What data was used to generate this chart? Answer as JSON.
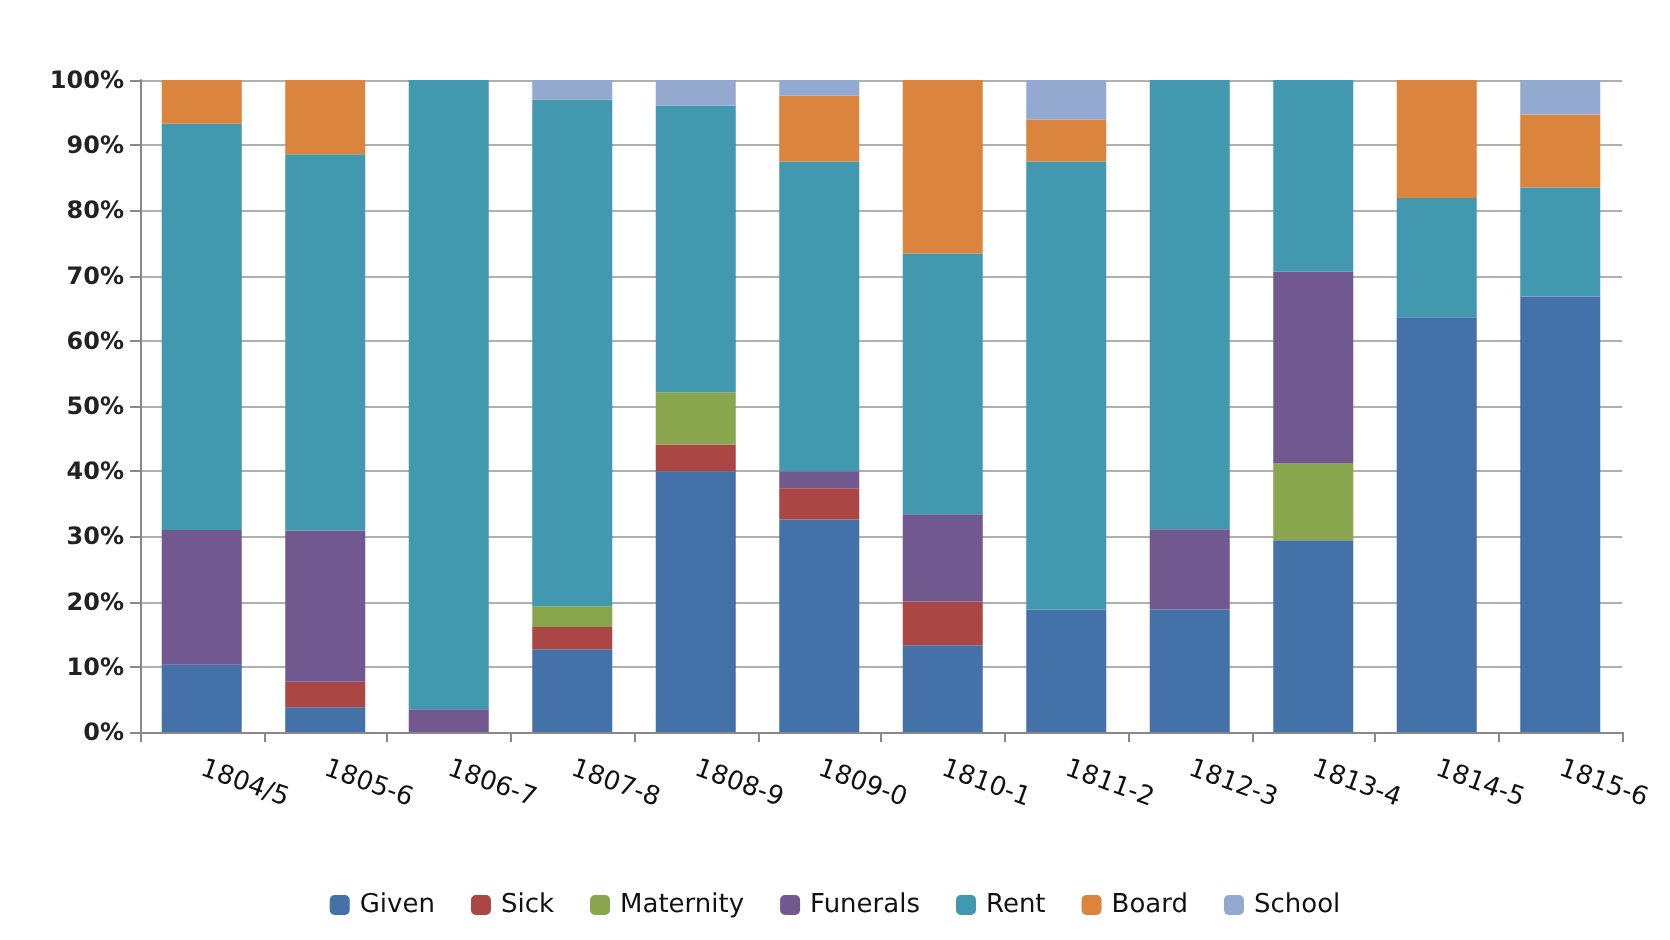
{
  "chart_data": {
    "type": "bar",
    "stacked": true,
    "categories": [
      "1804/5",
      "1805-6",
      "1806-7",
      "1807-8",
      "1808-9",
      "1809-0",
      "1810-1",
      "1811-2",
      "1812-3",
      "1813-4",
      "1814-5",
      "1815-6"
    ],
    "series": [
      {
        "name": "Given",
        "color": "#4472a8",
        "values": [
          10.3,
          3.8,
          0,
          12.7,
          40,
          32.6,
          13.3,
          18.8,
          18.8,
          29.4,
          63.6,
          66.8
        ]
      },
      {
        "name": "Sick",
        "color": "#aa4643",
        "values": [
          0,
          3.9,
          0,
          3.4,
          4.1,
          4.8,
          6.7,
          0,
          0,
          0,
          0,
          0
        ]
      },
      {
        "name": "Maternity",
        "color": "#89a54e",
        "values": [
          0,
          0,
          0,
          3.2,
          8,
          0,
          0,
          0,
          0,
          11.8,
          0,
          0
        ]
      },
      {
        "name": "Funerals",
        "color": "#71588f",
        "values": [
          20.7,
          23.2,
          3.5,
          0,
          0,
          2.6,
          13.4,
          0,
          12.3,
          29.4,
          0,
          0
        ]
      },
      {
        "name": "Rent",
        "color": "#4198af",
        "values": [
          62.3,
          57.7,
          96.5,
          77.7,
          44,
          47.5,
          40,
          68.7,
          68.9,
          29.4,
          18.3,
          16.7
        ]
      },
      {
        "name": "Board",
        "color": "#db843d",
        "values": [
          6.7,
          11.4,
          0,
          0,
          0,
          10.1,
          26.6,
          6.4,
          0,
          0,
          18.1,
          11.2
        ]
      },
      {
        "name": "School",
        "color": "#93a9cf",
        "values": [
          0,
          0,
          0,
          3,
          3.9,
          2.4,
          0,
          6.1,
          0,
          0,
          0,
          5.3
        ]
      }
    ],
    "ylim": [
      0,
      100
    ],
    "yticks": [
      {
        "value": 0,
        "label": "0%"
      },
      {
        "value": 10,
        "label": "10%"
      },
      {
        "value": 20,
        "label": "20%"
      },
      {
        "value": 30,
        "label": "30%"
      },
      {
        "value": 40,
        "label": "40%"
      },
      {
        "value": 50,
        "label": "50%"
      },
      {
        "value": 60,
        "label": "60%"
      },
      {
        "value": 70,
        "label": "70%"
      },
      {
        "value": 80,
        "label": "80%"
      },
      {
        "value": 90,
        "label": "90%"
      },
      {
        "value": 100,
        "label": "100%"
      }
    ],
    "grid": "y",
    "legend": "bottom"
  }
}
